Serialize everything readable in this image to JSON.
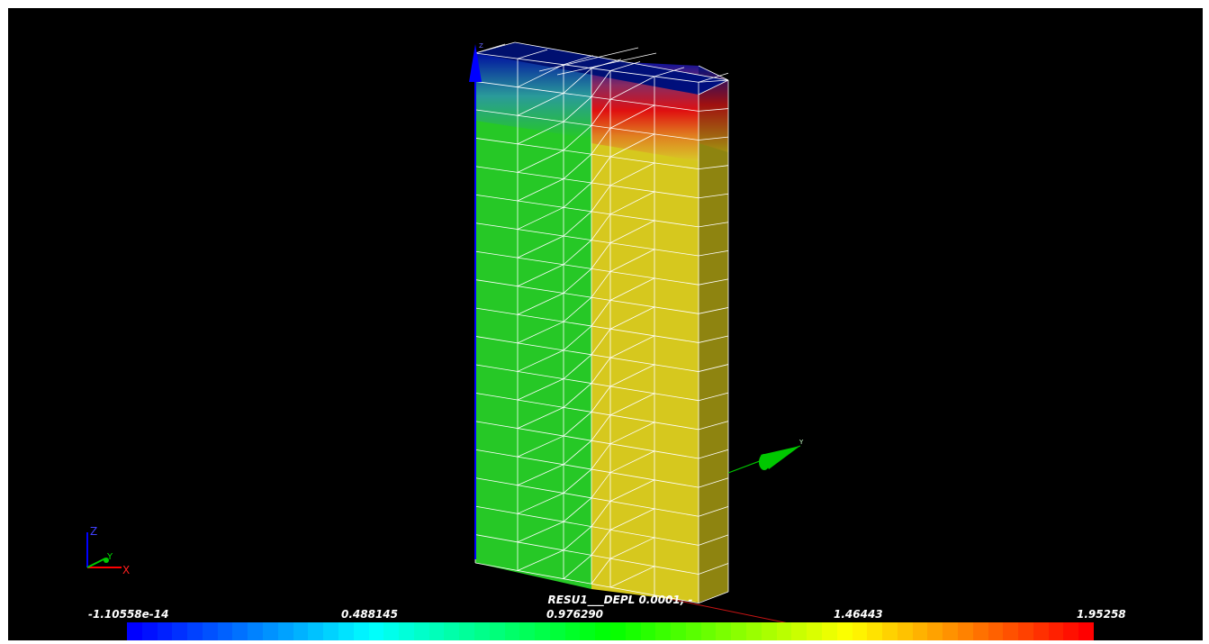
{
  "axes": {
    "x_label": "X",
    "y_label": "Y",
    "z_label": "Z",
    "scene_y_label": "Y",
    "scene_z_label": "Z"
  },
  "scalar_bar": {
    "title": "RESU1___DEPL 0.0001, -",
    "tick_labels": [
      "-1.10558e-14",
      "0.488145",
      "0.976290",
      "1.46443",
      "1.95258"
    ],
    "range": [
      -1.10558e-14,
      1.95258
    ],
    "num_colors": 64
  },
  "colors": {
    "background": "#000000",
    "frame": "#ffffff",
    "mesh_edges": "#ffffff",
    "low": "#0000ff",
    "mid": "#00ff00",
    "high": "#ff0000",
    "x_axis": "#ff0000",
    "y_axis": "#00c800",
    "z_axis": "#0000ff"
  }
}
